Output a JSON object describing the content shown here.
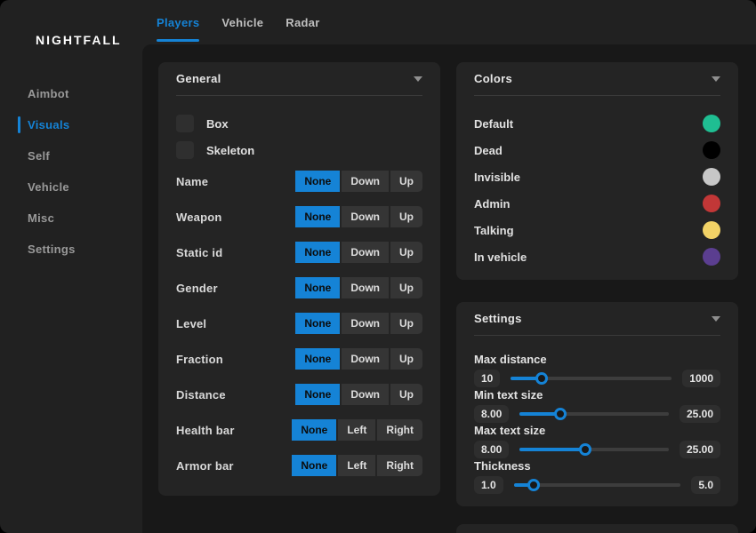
{
  "theme": {
    "accent": "#1583d6",
    "window_bg": "#212121",
    "inset_bg": "#181818",
    "panel_bg": "#242424"
  },
  "sidebar": {
    "logo": "NIGHTFALL",
    "items": [
      {
        "label": "Aimbot",
        "active": false
      },
      {
        "label": "Visuals",
        "active": true
      },
      {
        "label": "Self",
        "active": false
      },
      {
        "label": "Vehicle",
        "active": false
      },
      {
        "label": "Misc",
        "active": false
      },
      {
        "label": "Settings",
        "active": false
      }
    ]
  },
  "tabs": [
    {
      "label": "Players",
      "active": true
    },
    {
      "label": "Vehicle",
      "active": false
    },
    {
      "label": "Radar",
      "active": false
    }
  ],
  "general": {
    "title": "General",
    "checkboxes": [
      {
        "label": "Box",
        "checked": false
      },
      {
        "label": "Skeleton",
        "checked": false
      }
    ],
    "options": [
      {
        "label": "Name",
        "segments": [
          {
            "label": "None",
            "selected": true
          },
          {
            "label": "Down",
            "selected": false
          },
          {
            "label": "Up",
            "selected": false
          }
        ]
      },
      {
        "label": "Weapon",
        "segments": [
          {
            "label": "None",
            "selected": true
          },
          {
            "label": "Down",
            "selected": false
          },
          {
            "label": "Up",
            "selected": false
          }
        ]
      },
      {
        "label": "Static id",
        "segments": [
          {
            "label": "None",
            "selected": true
          },
          {
            "label": "Down",
            "selected": false
          },
          {
            "label": "Up",
            "selected": false
          }
        ]
      },
      {
        "label": "Gender",
        "segments": [
          {
            "label": "None",
            "selected": true
          },
          {
            "label": "Down",
            "selected": false
          },
          {
            "label": "Up",
            "selected": false
          }
        ]
      },
      {
        "label": "Level",
        "segments": [
          {
            "label": "None",
            "selected": true
          },
          {
            "label": "Down",
            "selected": false
          },
          {
            "label": "Up",
            "selected": false
          }
        ]
      },
      {
        "label": "Fraction",
        "segments": [
          {
            "label": "None",
            "selected": true
          },
          {
            "label": "Down",
            "selected": false
          },
          {
            "label": "Up",
            "selected": false
          }
        ]
      },
      {
        "label": "Distance",
        "segments": [
          {
            "label": "None",
            "selected": true
          },
          {
            "label": "Down",
            "selected": false
          },
          {
            "label": "Up",
            "selected": false
          }
        ]
      },
      {
        "label": "Health bar",
        "segments": [
          {
            "label": "None",
            "selected": true
          },
          {
            "label": "Left",
            "selected": false
          },
          {
            "label": "Right",
            "selected": false
          }
        ]
      },
      {
        "label": "Armor bar",
        "segments": [
          {
            "label": "None",
            "selected": true
          },
          {
            "label": "Left",
            "selected": false
          },
          {
            "label": "Right",
            "selected": false
          }
        ]
      }
    ]
  },
  "colors": {
    "title": "Colors",
    "items": [
      {
        "label": "Default",
        "color": "#1fbe92"
      },
      {
        "label": "Dead",
        "color": "#000000"
      },
      {
        "label": "Invisible",
        "color": "#c7c7c7"
      },
      {
        "label": "Admin",
        "color": "#c23737"
      },
      {
        "label": "Talking",
        "color": "#f2d266"
      },
      {
        "label": "In vehicle",
        "color": "#5b3e90"
      }
    ]
  },
  "settings": {
    "title": "Settings",
    "sliders": [
      {
        "label": "Max distance",
        "min": "10",
        "max": "1000",
        "fraction": 0.19
      },
      {
        "label": "Min text size",
        "min": "8.00",
        "max": "25.00",
        "fraction": 0.27
      },
      {
        "label": "Max text size",
        "min": "8.00",
        "max": "25.00",
        "fraction": 0.44
      },
      {
        "label": "Thickness",
        "min": "1.0",
        "max": "5.0",
        "fraction": 0.12
      }
    ]
  }
}
